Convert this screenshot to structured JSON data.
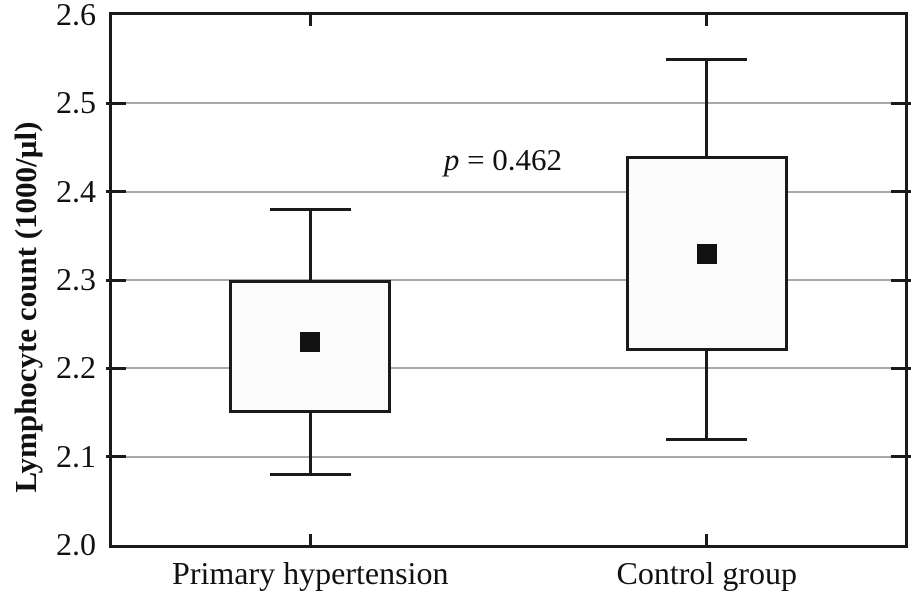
{
  "figure": {
    "background": "#ffffff"
  },
  "chart_data": {
    "type": "boxplot",
    "title": "",
    "xlabel": "",
    "ylabel": "Lymphocyte count (1000/µl)",
    "ylim": [
      2.0,
      2.6
    ],
    "yticks": [
      "2.0",
      "2.1",
      "2.2",
      "2.3",
      "2.4",
      "2.5",
      "2.6"
    ],
    "grid": "horizontal-gray-lines",
    "legend": "none",
    "categories": [
      "Primary hypertension",
      "Control group"
    ],
    "series": [
      {
        "name": "Primary hypertension",
        "whisker_low": 2.08,
        "box_low": 2.15,
        "mean": 2.23,
        "box_high": 2.3,
        "whisker_high": 2.38
      },
      {
        "name": "Control group",
        "whisker_low": 2.12,
        "box_low": 2.22,
        "mean": 2.33,
        "box_high": 2.44,
        "whisker_high": 2.55
      }
    ],
    "marker": "black-filled-square-mean",
    "annotation": {
      "text": "p = 0.462",
      "italic_prefix": "p",
      "x_frac": 0.493,
      "y_value": 2.436
    },
    "colors": {
      "frame": "#1a1a1a",
      "gridline": "#a8a8a8",
      "box_fill": "#fbfbfb",
      "box_border": "#1a1a1a",
      "mean_marker": "#111111",
      "text": "#111111"
    }
  }
}
